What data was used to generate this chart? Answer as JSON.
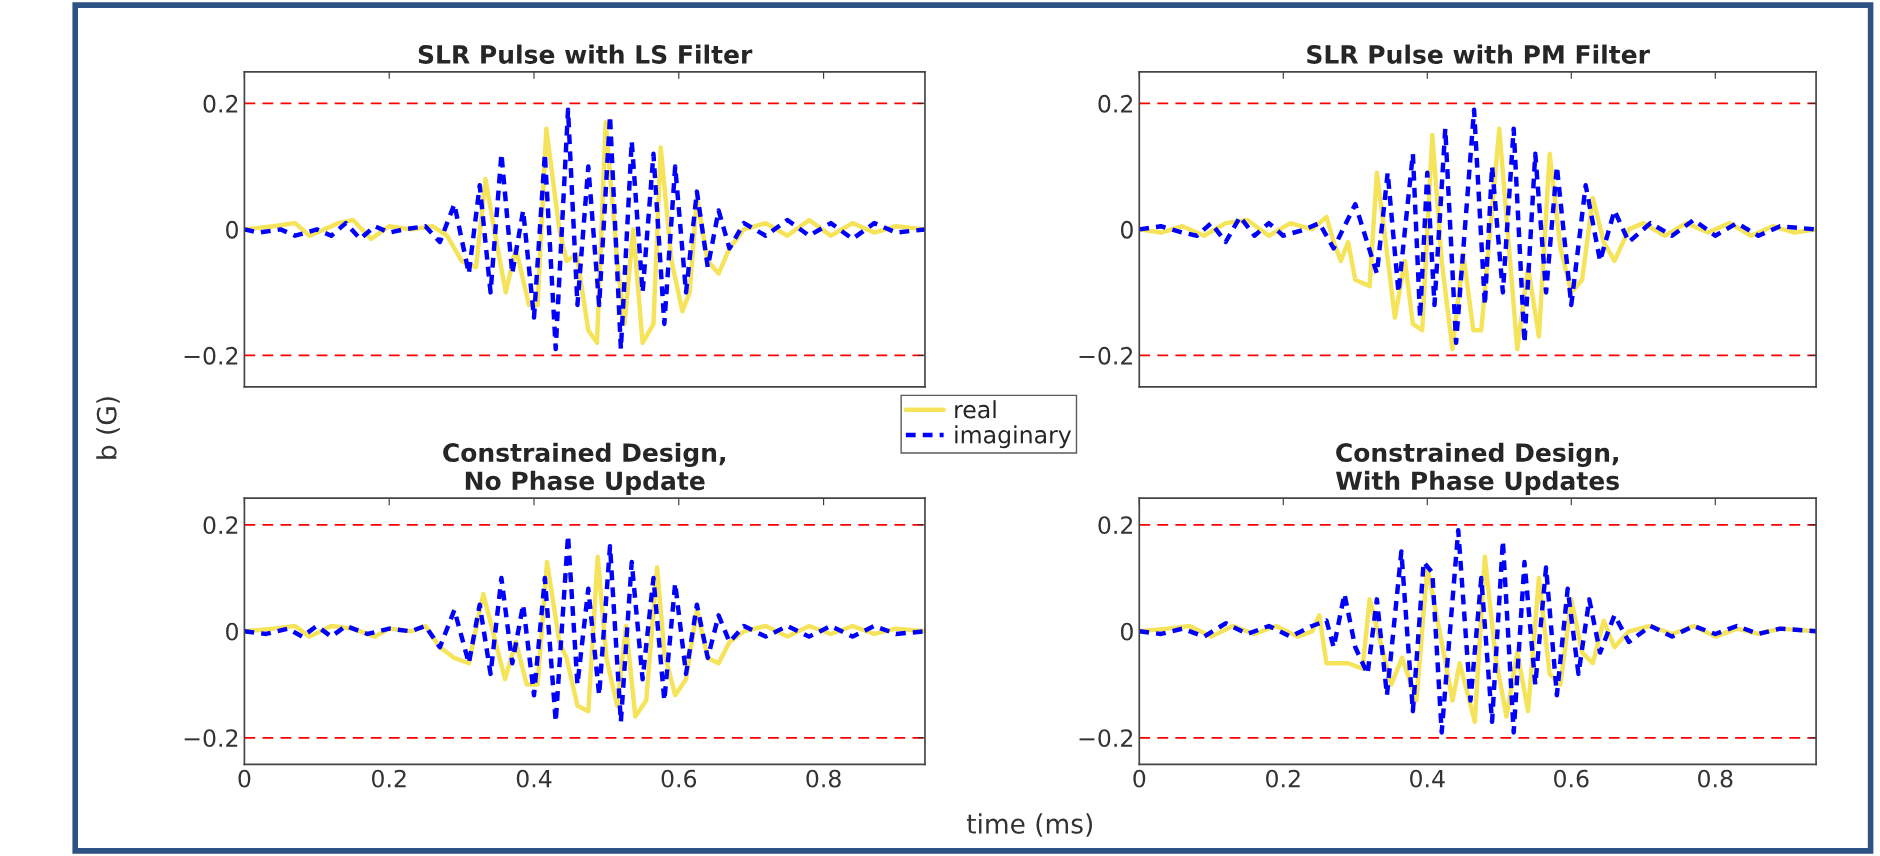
{
  "chart_data": [
    {
      "type": "line",
      "title": "SLR Pulse with LS Filter",
      "xlim": [
        0,
        0.94
      ],
      "ylim": [
        -0.25,
        0.25
      ],
      "xticks": [
        0,
        0.2,
        0.4,
        0.6,
        0.8
      ],
      "yticks": [
        -0.2,
        0,
        0.2
      ],
      "tick_labels": "y",
      "grid": false,
      "ref_lines": [
        {
          "axis": "y",
          "value": 0.2,
          "color": "#ff0000",
          "line_style": "dashed"
        },
        {
          "axis": "y",
          "value": -0.2,
          "color": "#ff0000",
          "line_style": "dashed"
        }
      ],
      "series": [
        {
          "color": "#f5e35a",
          "line_style": "solid",
          "x": [
            0,
            0.04,
            0.07,
            0.09,
            0.13,
            0.15,
            0.175,
            0.2,
            0.23,
            0.26,
            0.28,
            0.29,
            0.3,
            0.32,
            0.333,
            0.345,
            0.361,
            0.375,
            0.393,
            0.405,
            0.417,
            0.435,
            0.445,
            0.459,
            0.475,
            0.487,
            0.499,
            0.515,
            0.525,
            0.537,
            0.55,
            0.565,
            0.575,
            0.59,
            0.605,
            0.615,
            0.625,
            0.64,
            0.655,
            0.67,
            0.69,
            0.72,
            0.75,
            0.78,
            0.81,
            0.84,
            0.87,
            0.9,
            0.94
          ],
          "values": [
            0,
            0.005,
            0.01,
            -0.01,
            0.01,
            0.015,
            -0.015,
            0.005,
            0,
            0.005,
            -0.01,
            -0.03,
            -0.05,
            -0.06,
            0.08,
            0,
            -0.1,
            -0.03,
            -0.12,
            -0.12,
            0.16,
            0,
            -0.05,
            -0.04,
            -0.16,
            -0.18,
            0.17,
            -0.05,
            -0.15,
            0,
            -0.18,
            -0.15,
            0.13,
            -0.05,
            -0.13,
            -0.1,
            0.05,
            -0.05,
            -0.07,
            -0.03,
            0,
            0.01,
            -0.01,
            0.015,
            -0.01,
            0.01,
            -0.005,
            0.005,
            0
          ]
        },
        {
          "color": "#0000ff",
          "line_style": "dashed",
          "x": [
            0,
            0.02,
            0.05,
            0.07,
            0.1,
            0.12,
            0.14,
            0.16,
            0.18,
            0.2,
            0.22,
            0.25,
            0.27,
            0.29,
            0.31,
            0.325,
            0.34,
            0.355,
            0.37,
            0.385,
            0.4,
            0.415,
            0.43,
            0.447,
            0.46,
            0.475,
            0.49,
            0.505,
            0.52,
            0.535,
            0.55,
            0.565,
            0.58,
            0.595,
            0.61,
            0.625,
            0.64,
            0.655,
            0.67,
            0.69,
            0.72,
            0.75,
            0.78,
            0.81,
            0.84,
            0.87,
            0.9,
            0.94
          ],
          "values": [
            0,
            -0.005,
            0,
            -0.01,
            0,
            -0.01,
            0.01,
            -0.015,
            0.005,
            -0.005,
            0,
            0.005,
            -0.02,
            0.04,
            -0.07,
            0.07,
            -0.1,
            0.12,
            -0.07,
            0.03,
            -0.14,
            0.12,
            -0.19,
            0.19,
            -0.12,
            0.1,
            -0.12,
            0.18,
            -0.19,
            0.14,
            -0.1,
            0.12,
            -0.15,
            0.1,
            -0.1,
            0.06,
            -0.06,
            0.03,
            -0.03,
            0.01,
            -0.01,
            0.015,
            -0.01,
            0.01,
            -0.015,
            0.01,
            -0.005,
            0
          ]
        }
      ]
    },
    {
      "type": "line",
      "title": "SLR Pulse with PM Filter",
      "xlim": [
        0,
        0.94
      ],
      "ylim": [
        -0.25,
        0.25
      ],
      "xticks": [
        0,
        0.2,
        0.4,
        0.6,
        0.8
      ],
      "yticks": [
        -0.2,
        0,
        0.2
      ],
      "tick_labels": "y",
      "grid": false,
      "ref_lines": [
        {
          "axis": "y",
          "value": 0.2,
          "color": "#ff0000",
          "line_style": "dashed"
        },
        {
          "axis": "y",
          "value": -0.2,
          "color": "#ff0000",
          "line_style": "dashed"
        }
      ],
      "series": [
        {
          "color": "#f5e35a",
          "line_style": "solid",
          "x": [
            0,
            0.03,
            0.06,
            0.09,
            0.12,
            0.15,
            0.18,
            0.21,
            0.24,
            0.26,
            0.27,
            0.28,
            0.29,
            0.3,
            0.32,
            0.33,
            0.34,
            0.355,
            0.369,
            0.38,
            0.393,
            0.407,
            0.42,
            0.435,
            0.45,
            0.464,
            0.475,
            0.5,
            0.515,
            0.525,
            0.54,
            0.555,
            0.57,
            0.585,
            0.6,
            0.615,
            0.63,
            0.645,
            0.66,
            0.68,
            0.7,
            0.73,
            0.76,
            0.79,
            0.82,
            0.85,
            0.88,
            0.91,
            0.94
          ],
          "values": [
            0,
            -0.005,
            0.005,
            -0.01,
            0.01,
            0.015,
            -0.01,
            0.01,
            0,
            0.02,
            -0.02,
            -0.05,
            -0.02,
            -0.08,
            -0.09,
            0.09,
            0,
            -0.14,
            -0.05,
            -0.15,
            -0.16,
            0.15,
            -0.05,
            -0.19,
            -0.04,
            -0.16,
            -0.16,
            0.16,
            -0.05,
            -0.19,
            -0.06,
            -0.17,
            0.12,
            -0.03,
            -0.1,
            -0.08,
            0.05,
            -0.02,
            -0.05,
            0,
            0.01,
            -0.01,
            0.01,
            -0.005,
            0.01,
            -0.01,
            0.005,
            -0.005,
            0
          ]
        },
        {
          "color": "#0000ff",
          "line_style": "dashed",
          "x": [
            0,
            0.03,
            0.06,
            0.08,
            0.1,
            0.12,
            0.14,
            0.16,
            0.18,
            0.2,
            0.23,
            0.25,
            0.27,
            0.3,
            0.33,
            0.345,
            0.36,
            0.38,
            0.39,
            0.4,
            0.41,
            0.425,
            0.44,
            0.465,
            0.48,
            0.49,
            0.505,
            0.52,
            0.535,
            0.55,
            0.565,
            0.58,
            0.6,
            0.62,
            0.64,
            0.66,
            0.68,
            0.71,
            0.74,
            0.77,
            0.8,
            0.83,
            0.86,
            0.89,
            0.94
          ],
          "values": [
            0,
            0.005,
            -0.005,
            -0.01,
            0.01,
            -0.02,
            0.02,
            -0.01,
            0.01,
            -0.01,
            0.0,
            0.01,
            -0.03,
            0.04,
            -0.07,
            0.09,
            -0.1,
            0.12,
            -0.14,
            0.09,
            -0.12,
            0.16,
            -0.18,
            0.19,
            -0.12,
            0.1,
            -0.1,
            0.16,
            -0.18,
            0.12,
            -0.1,
            0.1,
            -0.12,
            0.07,
            -0.05,
            0.03,
            -0.02,
            0.01,
            -0.01,
            0.015,
            -0.01,
            0.01,
            -0.01,
            0.005,
            0
          ]
        }
      ]
    },
    {
      "type": "line",
      "title": "Constrained Design,\nNo Phase Update",
      "xlabel": "time (ms)",
      "ylabel": "b (G)",
      "legend": "top right",
      "xlim": [
        0,
        0.94
      ],
      "ylim": [
        -0.25,
        0.25
      ],
      "xticks": [
        0,
        0.2,
        0.4,
        0.6,
        0.8
      ],
      "yticks": [
        -0.2,
        0,
        0.2
      ],
      "grid": false,
      "ref_lines": [
        {
          "axis": "y",
          "value": 0.2,
          "color": "#ff0000",
          "line_style": "dashed"
        },
        {
          "axis": "y",
          "value": -0.2,
          "color": "#ff0000",
          "line_style": "dashed"
        }
      ],
      "series": [
        {
          "name": "real",
          "color": "#f5e35a",
          "line_style": "solid",
          "x": [
            0,
            0.04,
            0.07,
            0.09,
            0.12,
            0.15,
            0.18,
            0.2,
            0.23,
            0.25,
            0.27,
            0.29,
            0.31,
            0.33,
            0.345,
            0.36,
            0.375,
            0.39,
            0.405,
            0.418,
            0.435,
            0.445,
            0.46,
            0.475,
            0.488,
            0.5,
            0.515,
            0.527,
            0.54,
            0.555,
            0.57,
            0.58,
            0.595,
            0.61,
            0.625,
            0.64,
            0.655,
            0.67,
            0.69,
            0.72,
            0.75,
            0.78,
            0.81,
            0.84,
            0.87,
            0.9,
            0.94
          ],
          "values": [
            0,
            0.005,
            0.01,
            -0.01,
            0.01,
            0.005,
            -0.01,
            0.005,
            0,
            0.01,
            -0.03,
            -0.05,
            -0.06,
            0.07,
            -0.01,
            -0.09,
            -0.02,
            -0.1,
            -0.1,
            0.13,
            -0.02,
            -0.05,
            -0.14,
            -0.15,
            0.14,
            -0.05,
            -0.14,
            0.01,
            -0.16,
            -0.13,
            0.12,
            -0.04,
            -0.12,
            -0.09,
            0.04,
            -0.05,
            -0.06,
            -0.02,
            0,
            0.01,
            -0.01,
            0.01,
            -0.005,
            0.01,
            -0.005,
            0.005,
            0
          ]
        },
        {
          "name": "imaginary",
          "color": "#0000ff",
          "line_style": "dashed",
          "x": [
            0,
            0.03,
            0.06,
            0.08,
            0.1,
            0.12,
            0.14,
            0.17,
            0.2,
            0.23,
            0.25,
            0.27,
            0.29,
            0.31,
            0.325,
            0.34,
            0.355,
            0.37,
            0.385,
            0.4,
            0.415,
            0.43,
            0.447,
            0.46,
            0.475,
            0.49,
            0.505,
            0.52,
            0.535,
            0.55,
            0.565,
            0.58,
            0.595,
            0.61,
            0.625,
            0.64,
            0.655,
            0.67,
            0.69,
            0.72,
            0.75,
            0.78,
            0.81,
            0.84,
            0.87,
            0.9,
            0.94
          ],
          "values": [
            0,
            -0.005,
            0.005,
            -0.01,
            0.01,
            -0.01,
            0.01,
            -0.005,
            0.005,
            0,
            0.01,
            -0.03,
            0.04,
            -0.06,
            0.05,
            -0.08,
            0.1,
            -0.06,
            0.05,
            -0.12,
            0.1,
            -0.17,
            0.18,
            -0.1,
            0.08,
            -0.12,
            0.16,
            -0.17,
            0.13,
            -0.09,
            0.1,
            -0.13,
            0.09,
            -0.08,
            0.05,
            -0.05,
            0.03,
            -0.02,
            0.01,
            -0.01,
            0.01,
            -0.01,
            0.01,
            -0.01,
            0.01,
            -0.005,
            0
          ]
        }
      ]
    },
    {
      "type": "line",
      "title": "Constrained Design,\nWith Phase Updates",
      "xlim": [
        0,
        0.94
      ],
      "ylim": [
        -0.25,
        0.25
      ],
      "xticks": [
        0,
        0.2,
        0.4,
        0.6,
        0.8
      ],
      "yticks": [
        -0.2,
        0,
        0.2
      ],
      "grid": false,
      "ref_lines": [
        {
          "axis": "y",
          "value": 0.2,
          "color": "#ff0000",
          "line_style": "dashed"
        },
        {
          "axis": "y",
          "value": -0.2,
          "color": "#ff0000",
          "line_style": "dashed"
        }
      ],
      "series": [
        {
          "color": "#f5e35a",
          "line_style": "solid",
          "x": [
            0,
            0.04,
            0.07,
            0.1,
            0.13,
            0.16,
            0.19,
            0.22,
            0.24,
            0.25,
            0.26,
            0.29,
            0.31,
            0.32,
            0.35,
            0.365,
            0.385,
            0.4,
            0.42,
            0.435,
            0.445,
            0.466,
            0.48,
            0.495,
            0.51,
            0.525,
            0.54,
            0.555,
            0.57,
            0.585,
            0.6,
            0.615,
            0.63,
            0.645,
            0.66,
            0.68,
            0.71,
            0.74,
            0.77,
            0.8,
            0.83,
            0.86,
            0.89,
            0.94
          ],
          "values": [
            0,
            0.005,
            0.01,
            -0.01,
            0.01,
            -0.005,
            0.01,
            -0.01,
            0,
            0.03,
            -0.06,
            -0.06,
            -0.07,
            0.06,
            -0.1,
            -0.05,
            -0.13,
            0.12,
            -0.02,
            -0.13,
            -0.06,
            -0.17,
            0.14,
            -0.05,
            -0.16,
            -0.04,
            -0.15,
            0.1,
            -0.08,
            -0.1,
            0.06,
            -0.04,
            -0.06,
            0.02,
            -0.03,
            0,
            0.01,
            -0.005,
            0.01,
            -0.01,
            0.005,
            -0.005,
            0.005,
            0
          ]
        },
        {
          "color": "#0000ff",
          "line_style": "dashed",
          "x": [
            0,
            0.03,
            0.06,
            0.09,
            0.12,
            0.15,
            0.18,
            0.21,
            0.24,
            0.26,
            0.27,
            0.285,
            0.3,
            0.317,
            0.33,
            0.344,
            0.364,
            0.38,
            0.395,
            0.407,
            0.42,
            0.443,
            0.46,
            0.475,
            0.49,
            0.505,
            0.52,
            0.535,
            0.55,
            0.565,
            0.58,
            0.595,
            0.61,
            0.625,
            0.64,
            0.66,
            0.68,
            0.71,
            0.74,
            0.77,
            0.8,
            0.83,
            0.86,
            0.89,
            0.94
          ],
          "values": [
            0,
            -0.005,
            0.005,
            -0.01,
            0.015,
            -0.005,
            0.01,
            -0.01,
            0.01,
            0.02,
            -0.03,
            0.07,
            -0.03,
            -0.08,
            0.06,
            -0.12,
            0.15,
            -0.15,
            0.13,
            0.11,
            -0.19,
            0.19,
            -0.13,
            0.1,
            -0.17,
            0.17,
            -0.19,
            0.13,
            -0.1,
            0.12,
            -0.12,
            0.08,
            -0.08,
            0.06,
            -0.04,
            0.03,
            -0.02,
            0.01,
            -0.01,
            0.01,
            -0.005,
            0.01,
            -0.005,
            0.005,
            0
          ]
        }
      ]
    }
  ]
}
